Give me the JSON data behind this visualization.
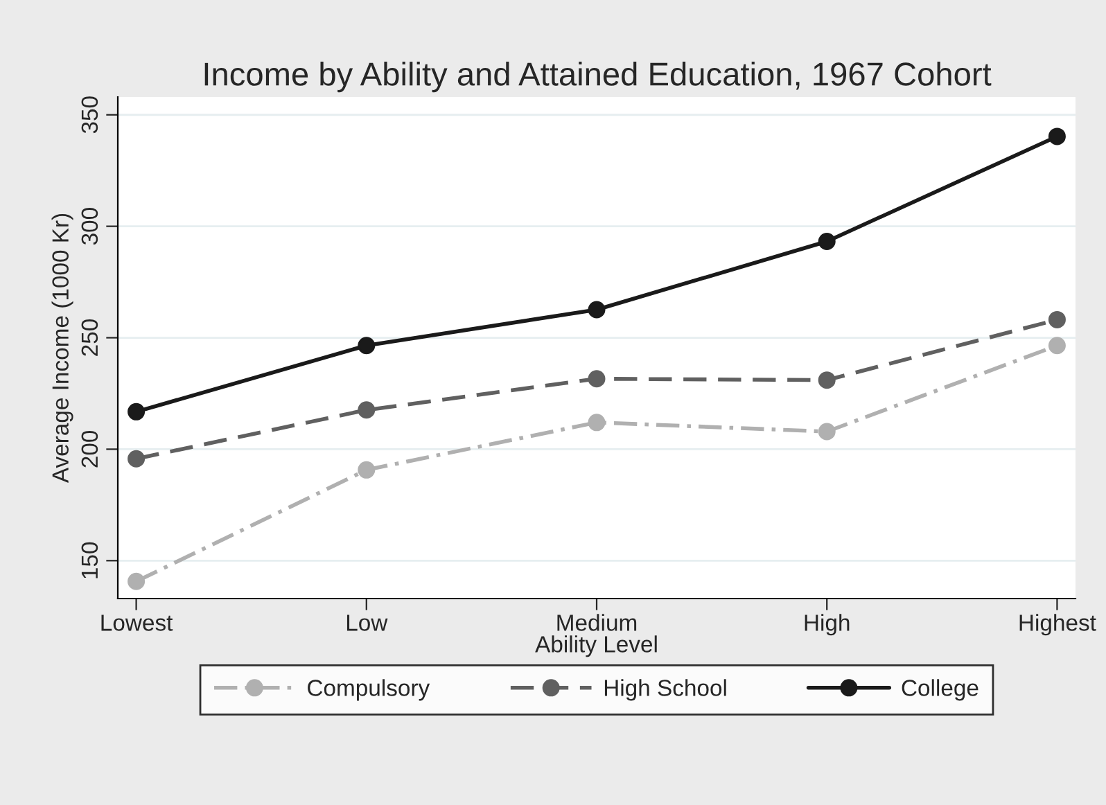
{
  "chart_data": {
    "type": "line",
    "title": "Income by Ability and Attained Education, 1967 Cohort",
    "xlabel": "Ability Level",
    "ylabel": "Average Income (1000 Kr)",
    "categories": [
      "Lowest",
      "Low",
      "Medium",
      "High",
      "Highest"
    ],
    "series": [
      {
        "name": "Compulsory",
        "color": "#b0b0b0",
        "line_style": "dashdot",
        "values": [
          140.7,
          190.7,
          212.0,
          207.9,
          246.5
        ]
      },
      {
        "name": "High School",
        "color": "#606060",
        "line_style": "dashed",
        "values": [
          195.7,
          217.6,
          231.6,
          231.0,
          258.1
        ]
      },
      {
        "name": "College",
        "color": "#1a1a1a",
        "line_style": "solid",
        "values": [
          216.8,
          246.5,
          262.6,
          293.2,
          340.3
        ]
      }
    ],
    "ylim": [
      133,
      358
    ],
    "yticks": [
      150,
      200,
      250,
      300,
      350
    ],
    "grid": "y",
    "legend": "bottom",
    "marker": "circle"
  }
}
